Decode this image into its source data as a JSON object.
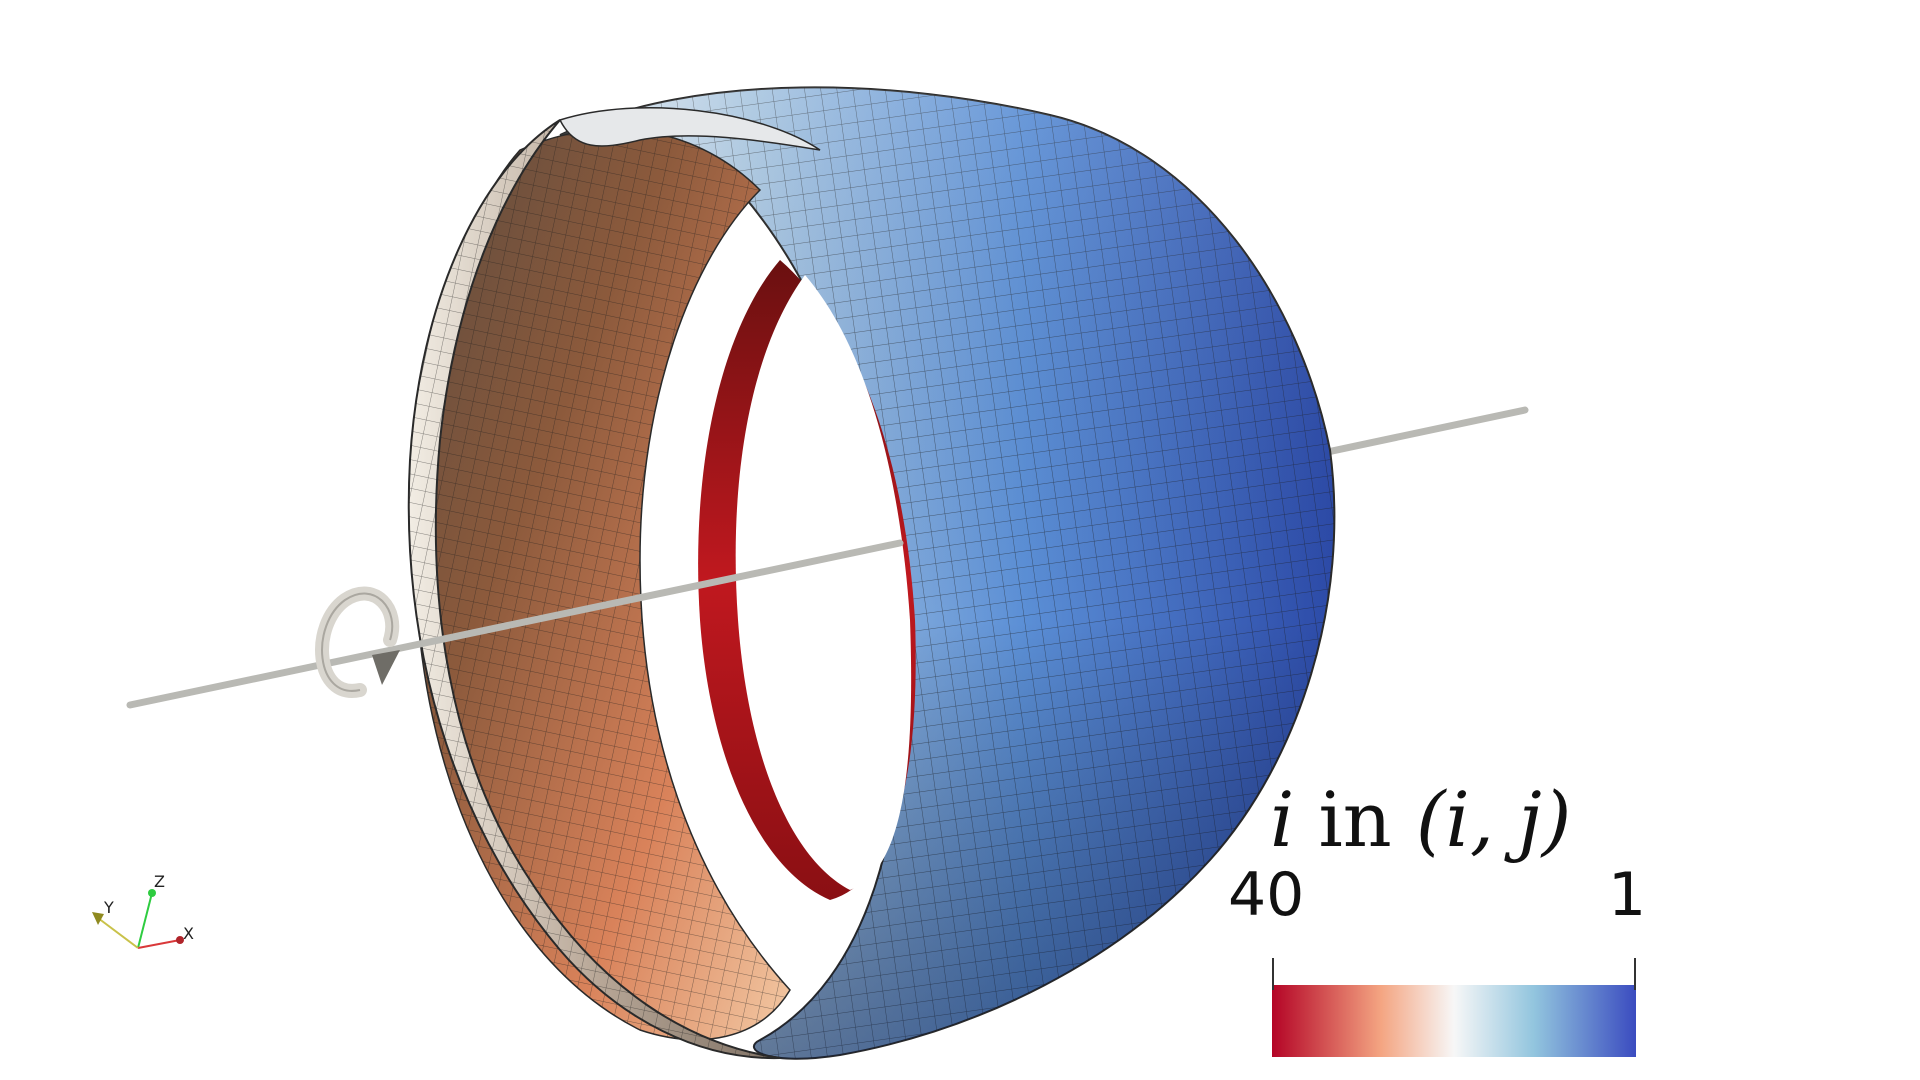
{
  "legend": {
    "title_var": "i",
    "title_mid": " in ",
    "title_paren": "(i, j)",
    "min_label": "40",
    "max_label": "1",
    "colors": [
      "#b40426",
      "#f4a582",
      "#f7f7f7",
      "#92c5de",
      "#3b4cc0"
    ]
  },
  "orientation_axes": {
    "x_label": "X",
    "y_label": "Y",
    "z_label": "Z"
  },
  "scene": {
    "object": "toroidal shell surface mesh",
    "rotation_icon": "rotation-arrow-icon"
  }
}
